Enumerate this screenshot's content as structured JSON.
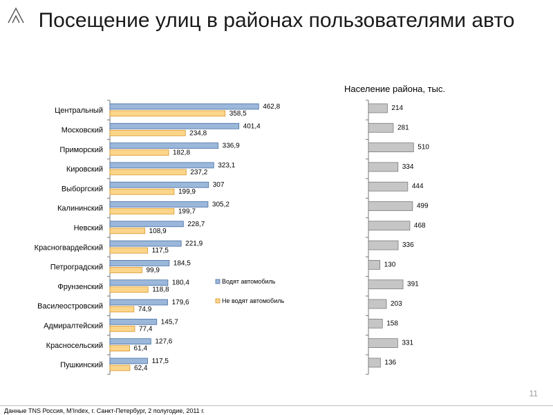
{
  "slide": {
    "title": "Посещение улиц в районах пользователями авто",
    "population_title": "Население района, тыс.",
    "page_number": "11",
    "footer": "Данные TNS Россия, M’Index, г. Санкт-Петербург, 2 полугодие, 2011 г."
  },
  "colors": {
    "blue_fill": "#9bb7da",
    "blue_stroke": "#4a6fa5",
    "orange_fill": "#fbd58a",
    "orange_stroke": "#d9962a",
    "gray_fill": "#c6c6c6",
    "gray_stroke": "#7a7a7a"
  },
  "chart_data": [
    {
      "type": "bar",
      "orientation": "horizontal",
      "categories": [
        "Центральный",
        "Московский",
        "Приморский",
        "Кировский",
        "Выборгский",
        "Калининский",
        "Невский",
        "Красногвардейский",
        "Петроградский",
        "Фрунзенский",
        "Василеостровский",
        "Адмиралтейский",
        "Красносельский",
        "Пушкинский"
      ],
      "series": [
        {
          "name": "Водят автомобиль",
          "values": [
            462.8,
            401.4,
            336.9,
            323.1,
            307,
            305.2,
            228.7,
            221.9,
            184.5,
            180.4,
            179.6,
            145.7,
            127.6,
            117.5
          ],
          "labels": [
            "462,8",
            "401,4",
            "336,9",
            "323,1",
            "307",
            "305,2",
            "228,7",
            "221,9",
            "184,5",
            "180,4",
            "179,6",
            "145,7",
            "127,6",
            "117,5"
          ]
        },
        {
          "name": "Не водят автомобиль",
          "values": [
            358.5,
            234.8,
            182.8,
            237.2,
            199.9,
            199.7,
            108.9,
            117.5,
            99.9,
            118.8,
            74.9,
            77.4,
            61.4,
            62.4
          ],
          "labels": [
            "358,5",
            "234,8",
            "182,8",
            "237,2",
            "199,9",
            "199,7",
            "108,9",
            "117,5",
            "99,9",
            "118,8",
            "74,9",
            "77,4",
            "61,4",
            "62,4"
          ]
        }
      ],
      "legend": "right",
      "grid": false
    },
    {
      "type": "bar",
      "orientation": "horizontal",
      "title": "Население района, тыс.",
      "categories": [
        "Центральный",
        "Московский",
        "Приморский",
        "Кировский",
        "Выборгский",
        "Калининский",
        "Невский",
        "Красногвардейский",
        "Петроградский",
        "Фрунзенский",
        "Василеостровский",
        "Адмиралтейский",
        "Красносельский",
        "Пушкинский"
      ],
      "values": [
        214,
        281,
        510,
        334,
        444,
        499,
        468,
        336,
        130,
        391,
        203,
        158,
        331,
        136
      ],
      "labels": [
        "214",
        "281",
        "510",
        "334",
        "444",
        "499",
        "468",
        "336",
        "130",
        "391",
        "203",
        "158",
        "331",
        "136"
      ],
      "grid": false
    }
  ]
}
